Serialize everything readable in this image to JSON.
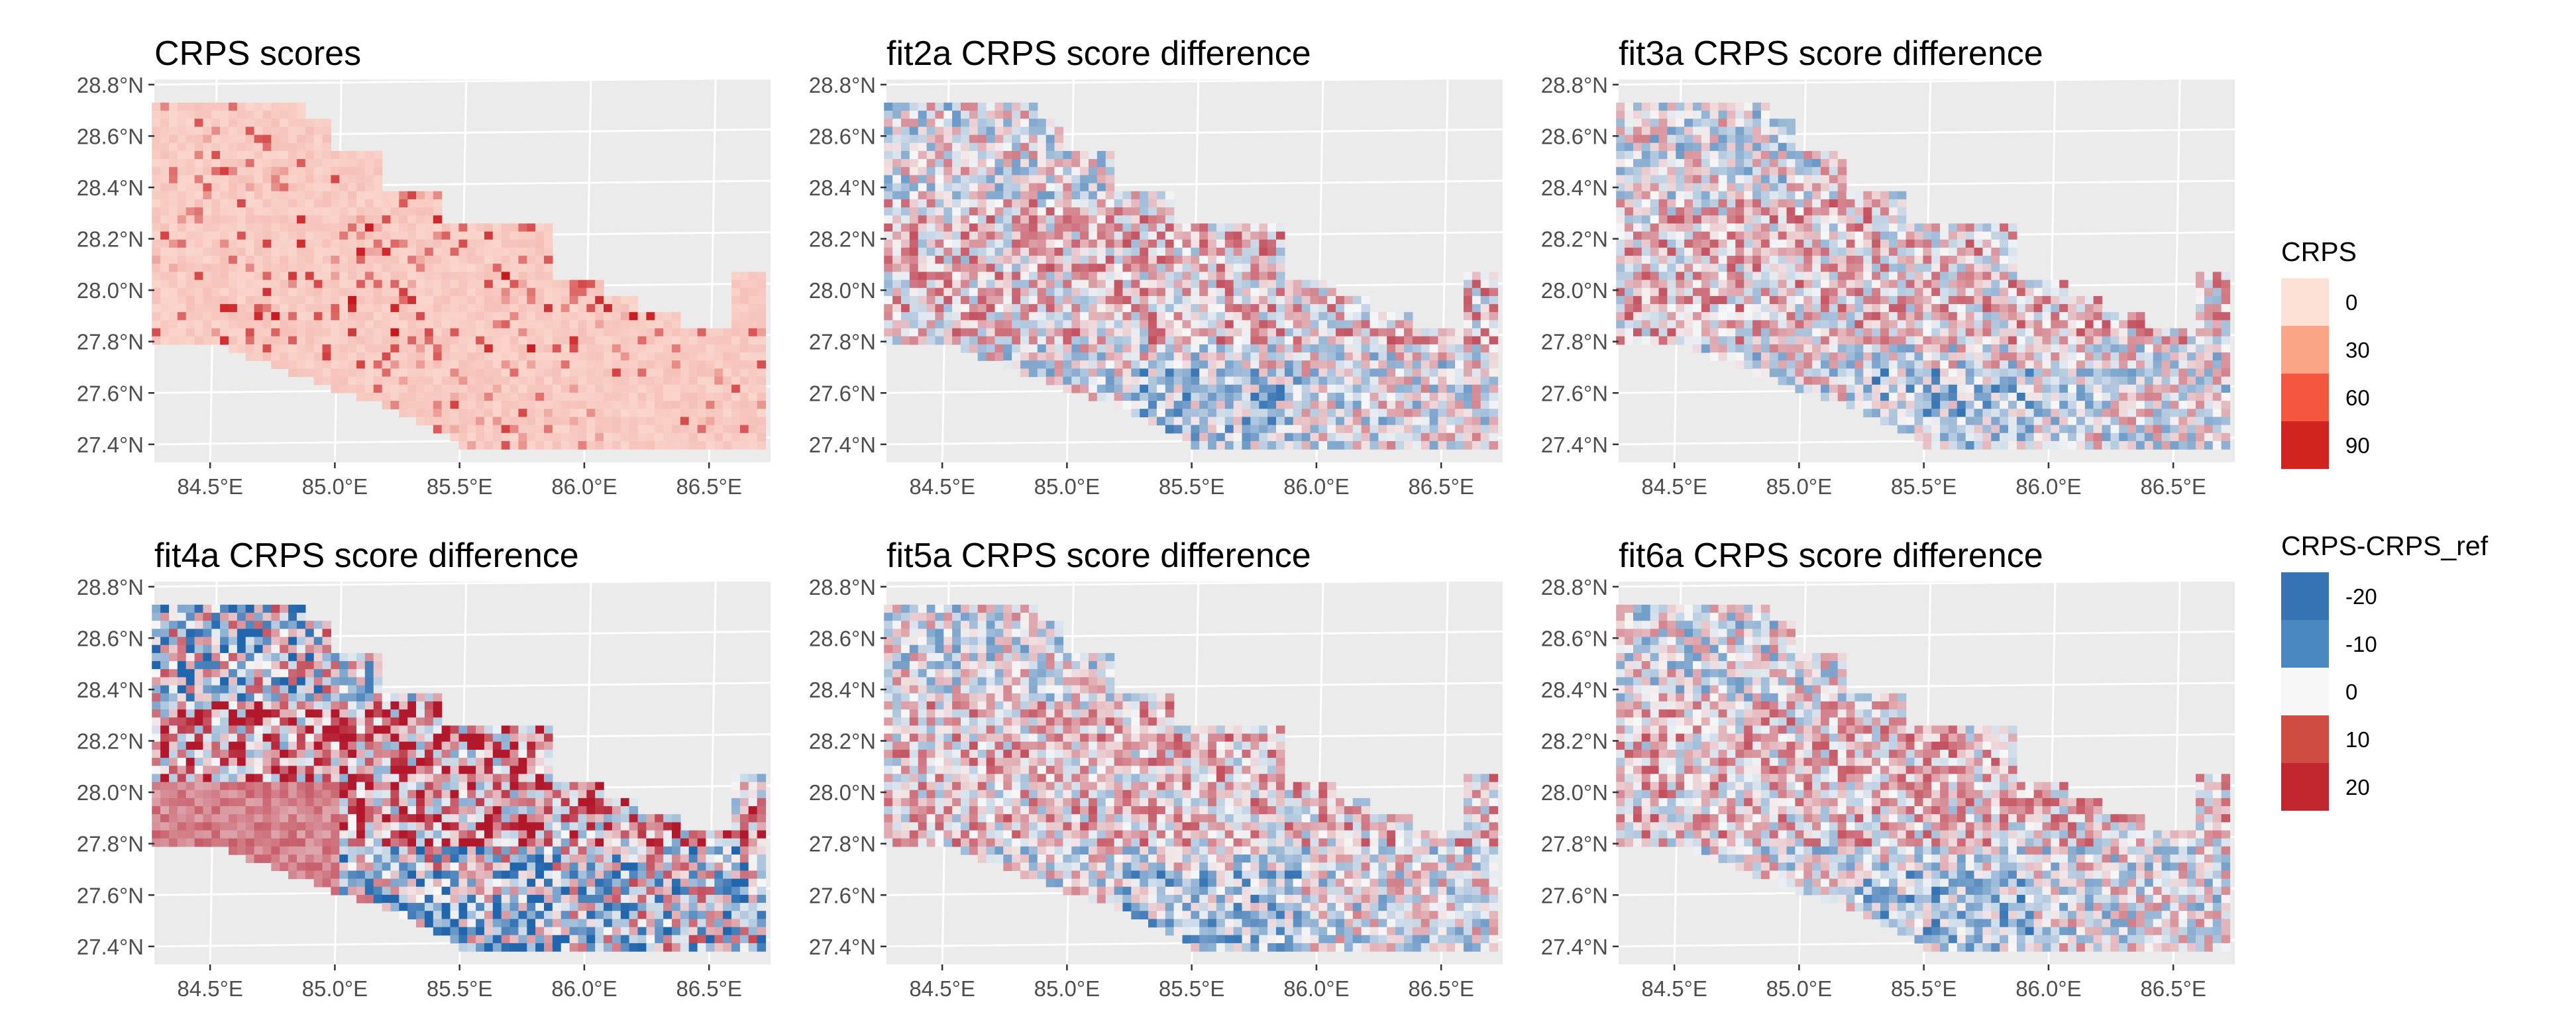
{
  "chart_data": [
    {
      "type": "heatmap",
      "title": "CRPS scores",
      "fill": "CRPS",
      "x_ticks": [
        "84.5°E",
        "85.0°E",
        "85.5°E",
        "86.0°E",
        "86.5°E"
      ],
      "y_ticks": [
        "28.8°N",
        "28.6°N",
        "28.4°N",
        "28.2°N",
        "28.0°N",
        "27.8°N",
        "27.6°N",
        "27.4°N"
      ],
      "x_range": [
        84.25,
        86.72
      ],
      "y_range": [
        27.33,
        28.82
      ]
    },
    {
      "type": "heatmap",
      "title": "fit2a CRPS score difference",
      "fill": "CRPS-CRPS_ref",
      "x_ticks": [
        "84.5°E",
        "85.0°E",
        "85.5°E",
        "86.0°E",
        "86.5°E"
      ],
      "y_ticks": [
        "28.8°N",
        "28.6°N",
        "28.4°N",
        "28.2°N",
        "28.0°N",
        "27.8°N",
        "27.6°N",
        "27.4°N"
      ],
      "x_range": [
        84.25,
        86.72
      ],
      "y_range": [
        27.33,
        28.82
      ]
    },
    {
      "type": "heatmap",
      "title": "fit3a CRPS score difference",
      "fill": "CRPS-CRPS_ref",
      "x_ticks": [
        "84.5°E",
        "85.0°E",
        "85.5°E",
        "86.0°E",
        "86.5°E"
      ],
      "y_ticks": [
        "28.8°N",
        "28.6°N",
        "28.4°N",
        "28.2°N",
        "28.0°N",
        "27.8°N",
        "27.6°N",
        "27.4°N"
      ],
      "x_range": [
        84.25,
        86.72
      ],
      "y_range": [
        27.33,
        28.82
      ]
    },
    {
      "type": "heatmap",
      "title": "fit4a CRPS score difference",
      "fill": "CRPS-CRPS_ref",
      "x_ticks": [
        "84.5°E",
        "85.0°E",
        "85.5°E",
        "86.0°E",
        "86.5°E"
      ],
      "y_ticks": [
        "28.8°N",
        "28.6°N",
        "28.4°N",
        "28.2°N",
        "28.0°N",
        "27.8°N",
        "27.6°N",
        "27.4°N"
      ],
      "x_range": [
        84.25,
        86.72
      ],
      "y_range": [
        27.33,
        28.82
      ]
    },
    {
      "type": "heatmap",
      "title": "fit5a CRPS score difference",
      "fill": "CRPS-CRPS_ref",
      "x_ticks": [
        "84.5°E",
        "85.0°E",
        "85.5°E",
        "86.0°E",
        "86.5°E"
      ],
      "y_ticks": [
        "28.8°N",
        "28.6°N",
        "28.4°N",
        "28.2°N",
        "28.0°N",
        "27.8°N",
        "27.6°N",
        "27.4°N"
      ],
      "x_range": [
        84.25,
        86.72
      ],
      "y_range": [
        27.33,
        28.82
      ]
    },
    {
      "type": "heatmap",
      "title": "fit6a CRPS score difference",
      "fill": "CRPS-CRPS_ref",
      "x_ticks": [
        "84.5°E",
        "85.0°E",
        "85.5°E",
        "86.0°E",
        "86.5°E"
      ],
      "y_ticks": [
        "28.8°N",
        "28.6°N",
        "28.4°N",
        "28.2°N",
        "28.0°N",
        "27.8°N",
        "27.6°N",
        "27.4°N"
      ],
      "x_range": [
        84.25,
        86.72
      ],
      "y_range": [
        27.33,
        28.82
      ]
    }
  ],
  "legends": [
    {
      "title": "CRPS",
      "entries": [
        {
          "label": "0",
          "color": "#fde0d6"
        },
        {
          "label": "30",
          "color": "#fca486"
        },
        {
          "label": "60",
          "color": "#f5573e"
        },
        {
          "label": "90",
          "color": "#d1231f"
        }
      ]
    },
    {
      "title": "CRPS-CRPS_ref",
      "entries": [
        {
          "label": "-20",
          "color": "#3573b2"
        },
        {
          "label": "-10",
          "color": "#4a88c2"
        },
        {
          "label": "0",
          "color": "#f7f7f7"
        },
        {
          "label": "10",
          "color": "#cf4c42"
        },
        {
          "label": "20",
          "color": "#c1262f"
        }
      ]
    }
  ],
  "colors": {
    "panel_background": "#ebebeb",
    "grid": "#ffffff",
    "crps_base": "#fde0d6",
    "diff_low": "#2166ac",
    "diff_mid": "#f7f7f7",
    "diff_high": "#b2182b"
  }
}
